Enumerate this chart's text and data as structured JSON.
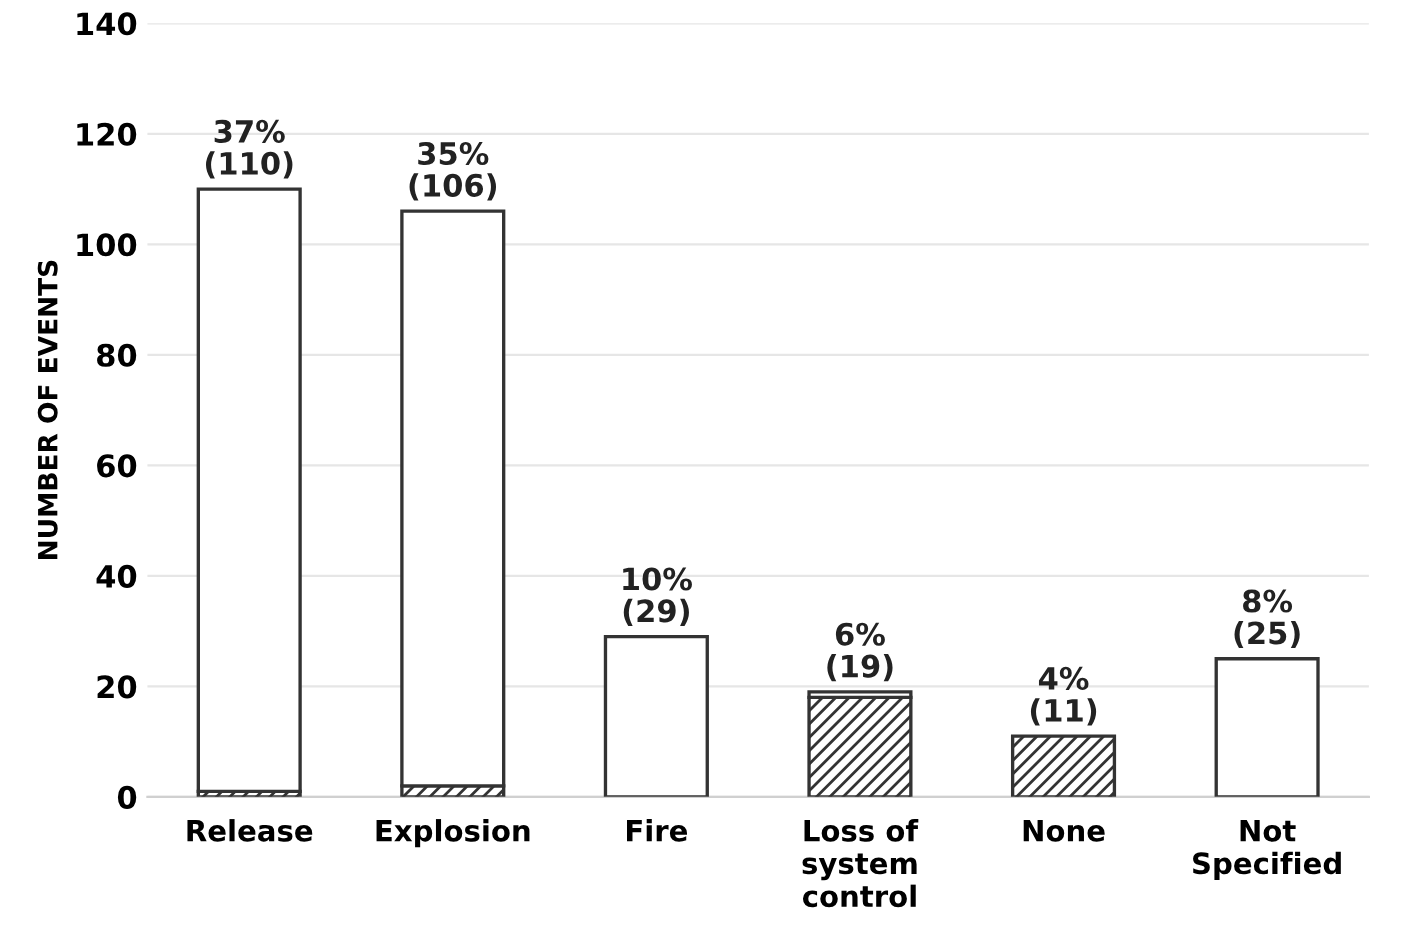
{
  "chart_data": {
    "type": "bar",
    "ylabel": "NUMBER OF EVENTS",
    "categories": [
      "Release",
      "Explosion",
      "Fire",
      "Loss of\nsystem\ncontrol",
      "None",
      "Not\nSpecified"
    ],
    "stacked": true,
    "series": [
      {
        "color": "#333333",
        "values": [
          1,
          2,
          0,
          18,
          11,
          0
        ]
      },
      {
        "color": "#ffffff",
        "values": [
          109,
          104,
          29,
          1,
          0,
          25
        ]
      }
    ],
    "totals": [
      "37%\n(110)",
      "35%\n(106)",
      "10%\n(29)",
      "6%\n(19)",
      "4%\n(11)",
      "8%\n(25)"
    ],
    "ylim": [
      0,
      140
    ],
    "yticks": [
      0,
      20,
      40,
      60,
      80,
      100,
      120,
      140
    ],
    "grid": "y",
    "legend": false
  }
}
